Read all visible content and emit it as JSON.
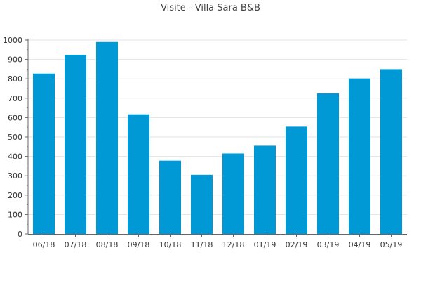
{
  "chart_data": {
    "type": "bar",
    "title": "Visite - Villa Sara B&B",
    "xlabel": "",
    "ylabel": "",
    "categories": [
      "06/18",
      "07/18",
      "08/18",
      "09/18",
      "10/18",
      "11/18",
      "12/18",
      "01/19",
      "02/19",
      "03/19",
      "04/19",
      "05/19"
    ],
    "values": [
      827,
      924,
      990,
      617,
      378,
      305,
      415,
      455,
      553,
      725,
      802,
      850
    ],
    "ylim": [
      0,
      1000
    ],
    "yticks": [
      0,
      100,
      200,
      300,
      400,
      500,
      600,
      700,
      800,
      900,
      1000
    ],
    "grid": true,
    "bar_color": "#0099d6"
  }
}
